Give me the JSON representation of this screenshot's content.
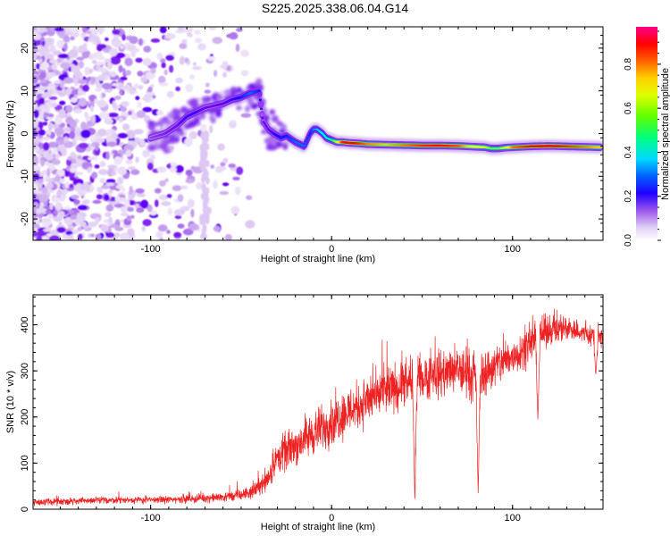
{
  "title": "S225.2025.338.06.04.G14",
  "colors": {
    "snr_line": "#ee2222",
    "colormap": [
      "#ffffff",
      "#e6d6f5",
      "#c9a6ee",
      "#9a55ec",
      "#6a00f0",
      "#1a00ff",
      "#0080ff",
      "#00e0ff",
      "#00ff60",
      "#c0ff00",
      "#ffff00",
      "#ff8000",
      "#ff0000",
      "#ff0080"
    ]
  },
  "chart_data": [
    {
      "type": "heatmap",
      "xlabel": "Height of straight line (km)",
      "ylabel": "Frequency (Hz)",
      "xlim": [
        -165,
        150
      ],
      "ylim": [
        -25,
        25
      ],
      "xticks": [
        -100,
        0,
        100
      ],
      "yticks": [
        -20,
        -10,
        0,
        10,
        20
      ],
      "colorbar": {
        "label": "Normalized spectral amplitude",
        "range": [
          0,
          0.97
        ],
        "ticks": [
          0.0,
          0.2,
          0.4,
          0.6,
          0.8
        ]
      },
      "ridge": {
        "x": [
          -100,
          -92,
          -85,
          -80,
          -75,
          -70,
          -65,
          -60,
          -55,
          -50,
          -45,
          -40,
          -38,
          -35,
          -32,
          -28,
          -25,
          -20,
          -15,
          -12,
          -10,
          -8,
          -5,
          -3,
          0,
          3,
          6,
          10,
          15,
          20,
          30,
          40,
          50,
          60,
          70,
          75,
          80,
          85,
          88,
          92,
          96,
          100,
          110,
          120,
          130,
          140,
          148
        ],
        "y": [
          -1,
          0,
          2,
          4,
          5,
          6,
          6.5,
          7,
          8,
          8.5,
          9.5,
          10,
          3,
          1,
          0,
          -1,
          -0.5,
          -2,
          -3,
          0,
          1,
          1,
          0,
          -1,
          -1.5,
          -2,
          -2,
          -2.2,
          -2.3,
          -2.5,
          -2.6,
          -2.7,
          -2.8,
          -2.8,
          -2.9,
          -3,
          -3.1,
          -3.2,
          -3.5,
          -3.5,
          -3.3,
          -3.2,
          -3.0,
          -2.9,
          -3.0,
          -3.1,
          -3.2
        ],
        "amplitude": [
          0.25,
          0.28,
          0.3,
          0.35,
          0.35,
          0.3,
          0.3,
          0.32,
          0.35,
          0.4,
          0.45,
          0.4,
          0.3,
          0.3,
          0.35,
          0.4,
          0.4,
          0.45,
          0.45,
          0.4,
          0.45,
          0.5,
          0.55,
          0.55,
          0.6,
          0.7,
          0.9,
          0.95,
          0.9,
          0.85,
          0.8,
          0.85,
          0.9,
          0.92,
          0.88,
          0.8,
          0.75,
          0.7,
          0.65,
          0.65,
          0.7,
          0.85,
          0.92,
          0.93,
          0.9,
          0.85,
          0.8
        ]
      }
    },
    {
      "type": "line",
      "xlabel": "Height of straight line (km)",
      "ylabel": "SNR (10 * v/v)",
      "xlim": [
        -165,
        150
      ],
      "ylim": [
        0,
        465
      ],
      "xticks": [
        -100,
        0,
        100
      ],
      "yticks": [
        0,
        100,
        200,
        300,
        400
      ],
      "envelope": {
        "x": [
          -165,
          -140,
          -120,
          -100,
          -80,
          -65,
          -55,
          -45,
          -40,
          -35,
          -30,
          -20,
          -10,
          0,
          10,
          20,
          30,
          40,
          50,
          60,
          70,
          80,
          90,
          100,
          110,
          115,
          120,
          130,
          140,
          150
        ],
        "y": [
          15,
          18,
          20,
          20,
          22,
          25,
          28,
          35,
          50,
          70,
          110,
          140,
          165,
          190,
          215,
          235,
          255,
          270,
          285,
          295,
          300,
          285,
          310,
          330,
          360,
          375,
          390,
          395,
          380,
          370
        ],
        "noise": [
          8,
          8,
          8,
          8,
          9,
          10,
          12,
          14,
          20,
          30,
          40,
          45,
          50,
          55,
          55,
          55,
          55,
          55,
          55,
          55,
          55,
          55,
          50,
          45,
          40,
          40,
          35,
          30,
          25,
          25
        ]
      },
      "dips": [
        {
          "x": 46,
          "y": 12
        },
        {
          "x": 81,
          "y": 35
        },
        {
          "x": 114,
          "y": 195
        },
        {
          "x": 146,
          "y": 290
        }
      ]
    }
  ]
}
